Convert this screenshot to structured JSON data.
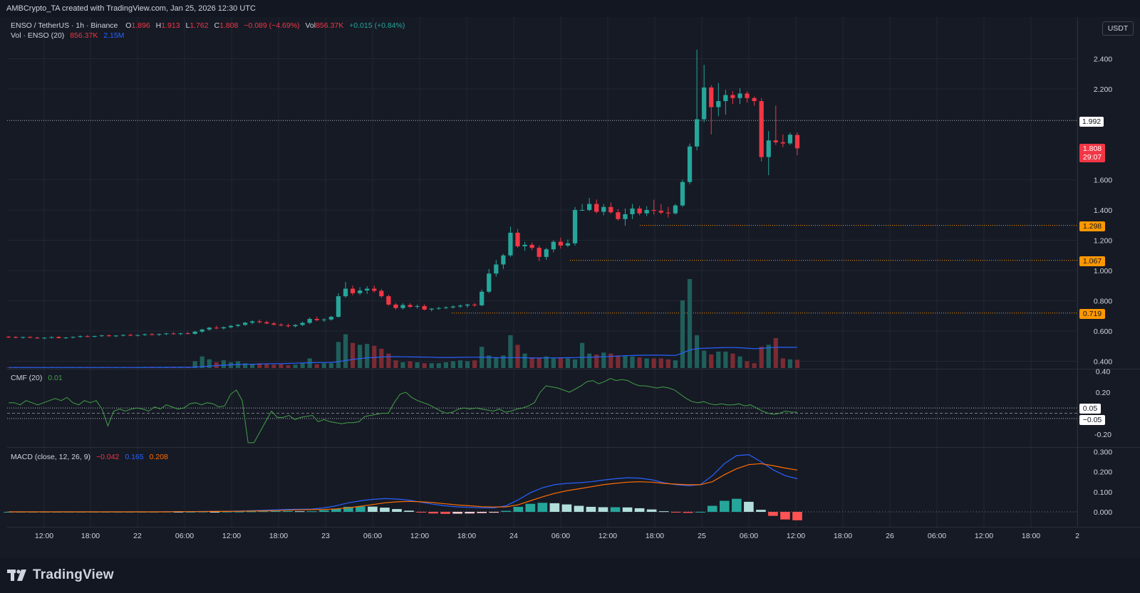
{
  "header": {
    "caption": "AMBCrypto_TA created with TradingView.com, Jan 25, 2026 12:30 UTC"
  },
  "legend": {
    "symbol": "ENSO / TetherUS · 1h · Binance",
    "o_label": "O",
    "o_value": "1.896",
    "h_label": "H",
    "h_value": "1.913",
    "l_label": "L",
    "l_value": "1.762",
    "c_label": "C",
    "c_value": "1.808",
    "change": "−0.089 (−4.69%)",
    "vol_label": "Vol",
    "vol_value": "856.37K",
    "vol_change": "+0.015 (+0.84%)",
    "vol_ind_name": "Vol · ENSO (20)",
    "vol_ind_v1": "856.37K",
    "vol_ind_v2": "2.15M",
    "cmf_name": "CMF (20)",
    "cmf_value": "0.01",
    "macd_name": "MACD (close, 12, 26, 9)",
    "macd_hist": "−0.042",
    "macd_line": "0.165",
    "macd_signal": "0.208"
  },
  "currency_button": "USDT",
  "price_tags": {
    "last_close": "1.992",
    "current_price": "1.808",
    "countdown": "29:07",
    "level_1": "1.298",
    "level_2": "1.067",
    "level_3": "0.719",
    "cmf_upper": "0.05",
    "cmf_lower": "−0.05"
  },
  "brand": "TradingView",
  "colors": {
    "up": "#26a69a",
    "down": "#f23645",
    "vol_up": "#1f5f5b",
    "vol_down": "#7a2b33",
    "vol_ma": "#2962ff",
    "cmf": "#43a047",
    "macd": "#2962ff",
    "signal": "#ff6d00",
    "hist_up_strong": "#26a69a",
    "hist_up_weak": "#b2dfdb",
    "hist_down_strong": "#ff5252",
    "hist_down_weak": "#ffcdd2",
    "level": "#ff9800"
  },
  "chart_data": {
    "type": "candlestick",
    "title": "ENSO / TetherUS · 1h · Binance",
    "price_axis_ticks": [
      "2.400",
      "2.200",
      "1.600",
      "1.400",
      "1.200",
      "1.000",
      "0.800",
      "0.600",
      "0.400"
    ],
    "time_axis_ticks": [
      "12:00",
      "18:00",
      "22",
      "06:00",
      "12:00",
      "18:00",
      "23",
      "06:00",
      "12:00",
      "18:00",
      "24",
      "06:00",
      "12:00",
      "18:00",
      "25",
      "06:00",
      "12:00",
      "18:00",
      "26",
      "06:00",
      "12:00",
      "18:00",
      "2"
    ],
    "y_range": [
      0.355,
      2.51
    ],
    "candles": [
      [
        0.562,
        0.568,
        0.555,
        0.56
      ],
      [
        0.56,
        0.566,
        0.552,
        0.557
      ],
      [
        0.557,
        0.563,
        0.55,
        0.56
      ],
      [
        0.56,
        0.566,
        0.553,
        0.556
      ],
      [
        0.556,
        0.562,
        0.549,
        0.552
      ],
      [
        0.552,
        0.559,
        0.546,
        0.556
      ],
      [
        0.556,
        0.563,
        0.55,
        0.56
      ],
      [
        0.56,
        0.566,
        0.551,
        0.553
      ],
      [
        0.553,
        0.56,
        0.548,
        0.557
      ],
      [
        0.557,
        0.564,
        0.551,
        0.561
      ],
      [
        0.561,
        0.571,
        0.556,
        0.566
      ],
      [
        0.566,
        0.573,
        0.559,
        0.563
      ],
      [
        0.563,
        0.57,
        0.557,
        0.567
      ],
      [
        0.567,
        0.575,
        0.561,
        0.571
      ],
      [
        0.571,
        0.578,
        0.563,
        0.566
      ],
      [
        0.566,
        0.573,
        0.56,
        0.57
      ],
      [
        0.57,
        0.578,
        0.564,
        0.574
      ],
      [
        0.574,
        0.582,
        0.566,
        0.57
      ],
      [
        0.57,
        0.577,
        0.563,
        0.574
      ],
      [
        0.574,
        0.583,
        0.568,
        0.579
      ],
      [
        0.579,
        0.587,
        0.571,
        0.575
      ],
      [
        0.575,
        0.583,
        0.568,
        0.58
      ],
      [
        0.58,
        0.588,
        0.573,
        0.584
      ],
      [
        0.584,
        0.592,
        0.576,
        0.58
      ],
      [
        0.58,
        0.588,
        0.573,
        0.585
      ],
      [
        0.585,
        0.594,
        0.578,
        0.581
      ],
      [
        0.581,
        0.6,
        0.577,
        0.596
      ],
      [
        0.596,
        0.615,
        0.588,
        0.61
      ],
      [
        0.61,
        0.628,
        0.602,
        0.622
      ],
      [
        0.622,
        0.635,
        0.612,
        0.618
      ],
      [
        0.618,
        0.63,
        0.61,
        0.625
      ],
      [
        0.625,
        0.64,
        0.618,
        0.634
      ],
      [
        0.634,
        0.647,
        0.626,
        0.641
      ],
      [
        0.641,
        0.66,
        0.633,
        0.655
      ],
      [
        0.655,
        0.67,
        0.645,
        0.664
      ],
      [
        0.664,
        0.676,
        0.65,
        0.658
      ],
      [
        0.658,
        0.668,
        0.646,
        0.65
      ],
      [
        0.65,
        0.66,
        0.636,
        0.642
      ],
      [
        0.642,
        0.652,
        0.63,
        0.637
      ],
      [
        0.637,
        0.648,
        0.624,
        0.632
      ],
      [
        0.632,
        0.645,
        0.624,
        0.64
      ],
      [
        0.64,
        0.662,
        0.633,
        0.654
      ],
      [
        0.654,
        0.69,
        0.646,
        0.68
      ],
      [
        0.68,
        0.695,
        0.665,
        0.672
      ],
      [
        0.672,
        0.685,
        0.66,
        0.676
      ],
      [
        0.676,
        0.7,
        0.668,
        0.694
      ],
      [
        0.694,
        0.85,
        0.688,
        0.83
      ],
      [
        0.83,
        0.925,
        0.82,
        0.88
      ],
      [
        0.88,
        0.9,
        0.836,
        0.85
      ],
      [
        0.85,
        0.89,
        0.838,
        0.868
      ],
      [
        0.868,
        0.896,
        0.845,
        0.88
      ],
      [
        0.88,
        0.9,
        0.854,
        0.866
      ],
      [
        0.866,
        0.878,
        0.82,
        0.83
      ],
      [
        0.83,
        0.84,
        0.768,
        0.775
      ],
      [
        0.775,
        0.785,
        0.742,
        0.752
      ],
      [
        0.752,
        0.785,
        0.742,
        0.772
      ],
      [
        0.772,
        0.785,
        0.752,
        0.76
      ],
      [
        0.76,
        0.775,
        0.748,
        0.765
      ],
      [
        0.765,
        0.776,
        0.736,
        0.742
      ],
      [
        0.742,
        0.752,
        0.73,
        0.748
      ],
      [
        0.748,
        0.76,
        0.74,
        0.752
      ],
      [
        0.752,
        0.764,
        0.745,
        0.756
      ],
      [
        0.756,
        0.77,
        0.748,
        0.762
      ],
      [
        0.762,
        0.776,
        0.752,
        0.768
      ],
      [
        0.768,
        0.78,
        0.755,
        0.775
      ],
      [
        0.775,
        0.785,
        0.76,
        0.77
      ],
      [
        0.77,
        0.875,
        0.764,
        0.86
      ],
      [
        0.86,
        1.01,
        0.85,
        0.98
      ],
      [
        0.98,
        1.07,
        0.96,
        1.04
      ],
      [
        1.04,
        1.11,
        1.01,
        1.1
      ],
      [
        1.1,
        1.29,
        1.09,
        1.25
      ],
      [
        1.25,
        1.275,
        1.15,
        1.16
      ],
      [
        1.16,
        1.19,
        1.13,
        1.17
      ],
      [
        1.17,
        1.185,
        1.135,
        1.15
      ],
      [
        1.15,
        1.165,
        1.062,
        1.09
      ],
      [
        1.09,
        1.15,
        1.07,
        1.14
      ],
      [
        1.14,
        1.2,
        1.12,
        1.19
      ],
      [
        1.19,
        1.218,
        1.145,
        1.165
      ],
      [
        1.165,
        1.205,
        1.155,
        1.18
      ],
      [
        1.18,
        1.42,
        1.165,
        1.4
      ],
      [
        1.4,
        1.44,
        1.395,
        1.4
      ],
      [
        1.4,
        1.48,
        1.392,
        1.44
      ],
      [
        1.44,
        1.47,
        1.378,
        1.388
      ],
      [
        1.388,
        1.44,
        1.365,
        1.42
      ],
      [
        1.42,
        1.45,
        1.375,
        1.385
      ],
      [
        1.385,
        1.405,
        1.33,
        1.34
      ],
      [
        1.34,
        1.41,
        1.296,
        1.372
      ],
      [
        1.372,
        1.44,
        1.34,
        1.41
      ],
      [
        1.41,
        1.428,
        1.365,
        1.378
      ],
      [
        1.378,
        1.425,
        1.36,
        1.4
      ],
      [
        1.4,
        1.468,
        1.37,
        1.395
      ],
      [
        1.395,
        1.44,
        1.372,
        1.383
      ],
      [
        1.383,
        1.42,
        1.35,
        1.378
      ],
      [
        1.378,
        1.44,
        1.37,
        1.43
      ],
      [
        1.43,
        1.6,
        1.42,
        1.585
      ],
      [
        1.585,
        1.84,
        1.57,
        1.82
      ],
      [
        1.82,
        2.46,
        1.795,
        2.0
      ],
      [
        2.0,
        2.36,
        1.98,
        2.21
      ],
      [
        2.21,
        2.225,
        1.9,
        2.08
      ],
      [
        2.08,
        2.24,
        2.02,
        2.12
      ],
      [
        2.12,
        2.195,
        2.03,
        2.16
      ],
      [
        2.16,
        2.185,
        2.1,
        2.14
      ],
      [
        2.14,
        2.205,
        2.1,
        2.17
      ],
      [
        2.17,
        2.185,
        2.11,
        2.14
      ],
      [
        2.14,
        2.15,
        2.09,
        2.12
      ],
      [
        2.12,
        2.14,
        1.72,
        1.75
      ],
      [
        1.75,
        1.922,
        1.63,
        1.86
      ],
      [
        1.86,
        2.09,
        1.83,
        1.848
      ],
      [
        1.848,
        1.9,
        1.816,
        1.84
      ],
      [
        1.84,
        1.912,
        1.83,
        1.898
      ],
      [
        1.896,
        1.913,
        1.762,
        1.808
      ]
    ],
    "volume": {
      "values_m": [
        0.05,
        0.05,
        0.05,
        0.06,
        0.05,
        0.06,
        0.05,
        0.06,
        0.05,
        0.06,
        0.07,
        0.06,
        0.06,
        0.07,
        0.06,
        0.06,
        0.07,
        0.07,
        0.06,
        0.07,
        0.08,
        0.07,
        0.08,
        0.09,
        0.08,
        0.09,
        0.7,
        1.2,
        0.9,
        0.6,
        0.8,
        0.6,
        0.7,
        0.5,
        0.4,
        0.5,
        0.4,
        0.35,
        0.4,
        0.3,
        0.35,
        0.5,
        1.0,
        0.4,
        0.5,
        0.5,
        2.7,
        3.5,
        2.6,
        2.4,
        2.5,
        2.3,
        2.0,
        1.5,
        0.8,
        0.6,
        0.7,
        0.6,
        0.5,
        0.5,
        0.5,
        0.6,
        0.7,
        0.8,
        0.7,
        0.8,
        2.2,
        1.3,
        1.1,
        1.3,
        3.4,
        2.4,
        1.5,
        1.1,
        1.0,
        1.2,
        1.0,
        1.1,
        1.0,
        0.9,
        2.6,
        1.5,
        1.4,
        1.6,
        1.5,
        1.3,
        1.3,
        1.2,
        1.1,
        1.0,
        1.0,
        1.0,
        0.9,
        0.8,
        7.0,
        9.2,
        3.4,
        1.8,
        1.4,
        1.7,
        1.7,
        1.5,
        1.2,
        0.7,
        0.5,
        2.2,
        2.4,
        3.1,
        1.0,
        0.9,
        0.86
      ],
      "ma20_m": [
        0.06,
        0.06,
        0.06,
        0.06,
        0.06,
        0.06,
        0.06,
        0.06,
        0.06,
        0.06,
        0.06,
        0.06,
        0.06,
        0.06,
        0.06,
        0.06,
        0.06,
        0.06,
        0.06,
        0.065,
        0.07,
        0.07,
        0.07,
        0.08,
        0.08,
        0.08,
        0.1,
        0.15,
        0.2,
        0.25,
        0.3,
        0.33,
        0.36,
        0.38,
        0.4,
        0.42,
        0.44,
        0.45,
        0.46,
        0.48,
        0.5,
        0.52,
        0.55,
        0.56,
        0.57,
        0.58,
        0.65,
        0.78,
        0.88,
        0.98,
        1.05,
        1.1,
        1.14,
        1.17,
        1.17,
        1.16,
        1.15,
        1.14,
        1.13,
        1.12,
        1.1,
        1.1,
        1.1,
        1.11,
        1.12,
        1.12,
        1.13,
        1.1,
        1.08,
        1.06,
        1.08,
        1.08,
        1.06,
        1.04,
        1.04,
        1.05,
        1.05,
        1.06,
        1.07,
        1.08,
        1.1,
        1.12,
        1.14,
        1.16,
        1.2,
        1.24,
        1.27,
        1.3,
        1.32,
        1.33,
        1.33,
        1.33,
        1.32,
        1.3,
        1.55,
        1.88,
        2.0,
        2.05,
        2.07,
        2.1,
        2.12,
        2.12,
        2.1,
        2.05,
        2.0,
        2.03,
        2.08,
        2.15,
        2.14,
        2.14,
        2.15
      ],
      "axis_max_m": 12.0
    },
    "cmf": {
      "values": [
        0.1,
        0.1,
        0.08,
        0.12,
        0.1,
        0.08,
        0.1,
        0.12,
        0.14,
        0.12,
        0.15,
        0.1,
        0.08,
        0.12,
        0.1,
        0.12,
        0.04,
        -0.12,
        0.02,
        0.04,
        0.02,
        0.04,
        0.05,
        0.04,
        0.02,
        0.06,
        0.04,
        0.08,
        0.06,
        0.04,
        0.05,
        0.09,
        0.1,
        0.08,
        0.1,
        0.09,
        0.06,
        0.07,
        0.18,
        0.22,
        0.12,
        -0.28,
        -0.28,
        -0.18,
        -0.08,
        0.02,
        -0.04,
        -0.04,
        -0.02,
        -0.06,
        -0.04,
        -0.03,
        -0.02,
        -0.08,
        -0.06,
        -0.08,
        -0.09,
        -0.1,
        -0.09,
        -0.09,
        -0.08,
        -0.03,
        -0.02,
        -0.01,
        0.0,
        0.0,
        0.1,
        0.18,
        0.2,
        0.15,
        0.12,
        0.1,
        0.08,
        0.05,
        0.02,
        0.0,
        0.01,
        0.04,
        0.05,
        0.04,
        0.05,
        0.04,
        0.03,
        0.02,
        0.04,
        0.01,
        0.02,
        0.04,
        0.05,
        0.07,
        0.1,
        0.2,
        0.26,
        0.25,
        0.24,
        0.22,
        0.2,
        0.23,
        0.26,
        0.3,
        0.31,
        0.28,
        0.3,
        0.33,
        0.31,
        0.32,
        0.31,
        0.28,
        0.26,
        0.26,
        0.25,
        0.24,
        0.25,
        0.24,
        0.22,
        0.18,
        0.14,
        0.11,
        0.1,
        0.11,
        0.09,
        0.08,
        0.09,
        0.08,
        0.08,
        0.09,
        0.07,
        0.08,
        0.05,
        0.02,
        0.0,
        -0.01,
        0.0,
        0.02,
        0.01,
        0.01
      ],
      "ylim": [
        -0.3,
        0.4
      ],
      "ticks": [
        "0.40",
        "0.20",
        "-0.20"
      ]
    },
    "macd": {
      "macd": [
        0.0,
        0.0,
        0.0,
        0.0,
        0.0,
        0.0,
        0.0,
        0.0,
        0.0,
        0.0,
        0.0,
        0.0,
        0.0,
        0.001,
        0.001,
        0.001,
        0.002,
        0.002,
        0.003,
        0.004,
        0.006,
        0.008,
        0.01,
        0.012,
        0.013,
        0.014,
        0.02,
        0.03,
        0.045,
        0.055,
        0.062,
        0.066,
        0.064,
        0.058,
        0.048,
        0.038,
        0.03,
        0.025,
        0.022,
        0.02,
        0.02,
        0.03,
        0.06,
        0.095,
        0.12,
        0.135,
        0.142,
        0.145,
        0.15,
        0.158,
        0.165,
        0.17,
        0.168,
        0.16,
        0.145,
        0.135,
        0.13,
        0.135,
        0.18,
        0.24,
        0.28,
        0.285,
        0.25,
        0.21,
        0.18,
        0.165
      ],
      "signal": [
        0.0,
        0.0,
        0.0,
        0.0,
        0.0,
        0.0,
        0.0,
        0.0,
        0.0,
        0.0,
        0.0,
        0.0,
        0.0,
        0.0,
        0.001,
        0.001,
        0.001,
        0.002,
        0.002,
        0.003,
        0.004,
        0.005,
        0.006,
        0.008,
        0.01,
        0.011,
        0.012,
        0.015,
        0.02,
        0.028,
        0.036,
        0.045,
        0.05,
        0.052,
        0.05,
        0.046,
        0.04,
        0.034,
        0.03,
        0.026,
        0.024,
        0.025,
        0.035,
        0.055,
        0.075,
        0.092,
        0.105,
        0.115,
        0.125,
        0.135,
        0.142,
        0.148,
        0.15,
        0.148,
        0.142,
        0.138,
        0.135,
        0.135,
        0.15,
        0.185,
        0.215,
        0.235,
        0.24,
        0.23,
        0.218,
        0.208
      ],
      "histogram": [
        0.0,
        0.0,
        0.0,
        0.0,
        0.0,
        0.0,
        0.0,
        0.0,
        0.0,
        0.0,
        0.0,
        0.0,
        0.0,
        0.001,
        0.0,
        0.0,
        0.001,
        0.0,
        0.001,
        0.001,
        0.002,
        0.003,
        0.004,
        0.004,
        0.003,
        0.003,
        0.008,
        0.015,
        0.025,
        0.027,
        0.026,
        0.021,
        0.014,
        0.006,
        -0.002,
        -0.008,
        -0.01,
        -0.009,
        -0.008,
        -0.006,
        -0.004,
        0.005,
        0.025,
        0.04,
        0.045,
        0.043,
        0.037,
        0.03,
        0.025,
        0.023,
        0.023,
        0.022,
        0.018,
        0.012,
        0.003,
        -0.003,
        -0.005,
        0.0,
        0.03,
        0.055,
        0.065,
        0.05,
        0.01,
        -0.02,
        -0.038,
        -0.042
      ],
      "ylim": [
        -0.06,
        0.3
      ],
      "ticks": [
        "0.300",
        "0.200",
        "0.100",
        "0.000"
      ]
    }
  }
}
